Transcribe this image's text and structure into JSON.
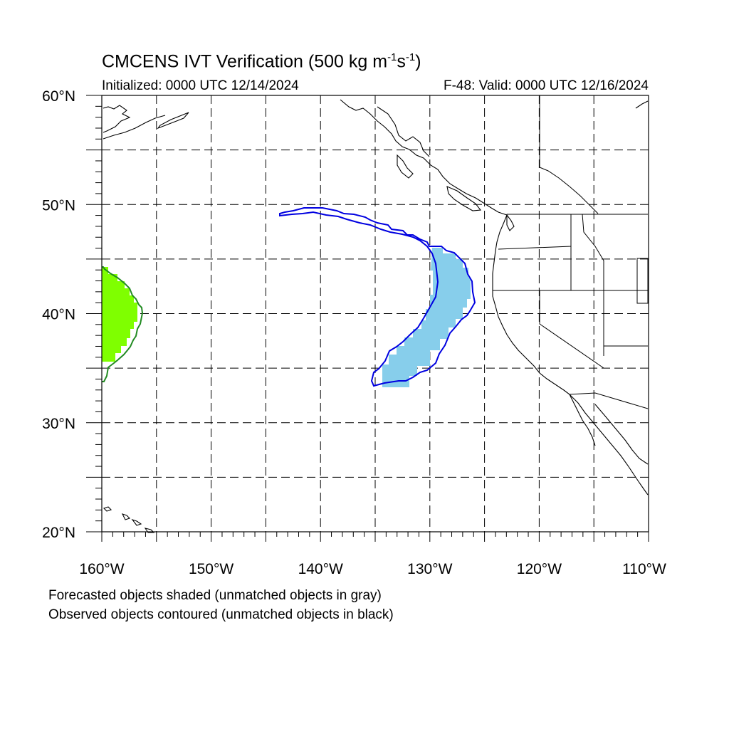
{
  "title": {
    "prefix": "CMCENS IVT Verification (500 kg m",
    "exp1": "-1",
    "mid": "s",
    "exp2": "-1",
    "suffix": ")"
  },
  "initialized": "Initialized: 0000 UTC 12/14/2024",
  "valid": "F-48: Valid: 0000 UTC 12/16/2024",
  "notes": [
    "Forecasted objects shaded (unmatched objects in gray)",
    "Observed objects contoured (unmatched objects in black)"
  ],
  "axes": {
    "lat_labels": [
      "60°N",
      "50°N",
      "40°N",
      "30°N",
      "20°N"
    ],
    "lon_labels": [
      "160°W",
      "150°W",
      "140°W",
      "130°W",
      "120°W",
      "110°W"
    ],
    "lat_range": [
      20,
      60
    ],
    "lon_range": [
      -160,
      -110
    ],
    "grid_spacing_deg": 5
  },
  "colors": {
    "forecast_object_1": "#7fff00",
    "observed_contour_1": "#228b22",
    "forecast_object_2": "#87ceeb",
    "observed_contour_2": "#0000e0"
  }
}
